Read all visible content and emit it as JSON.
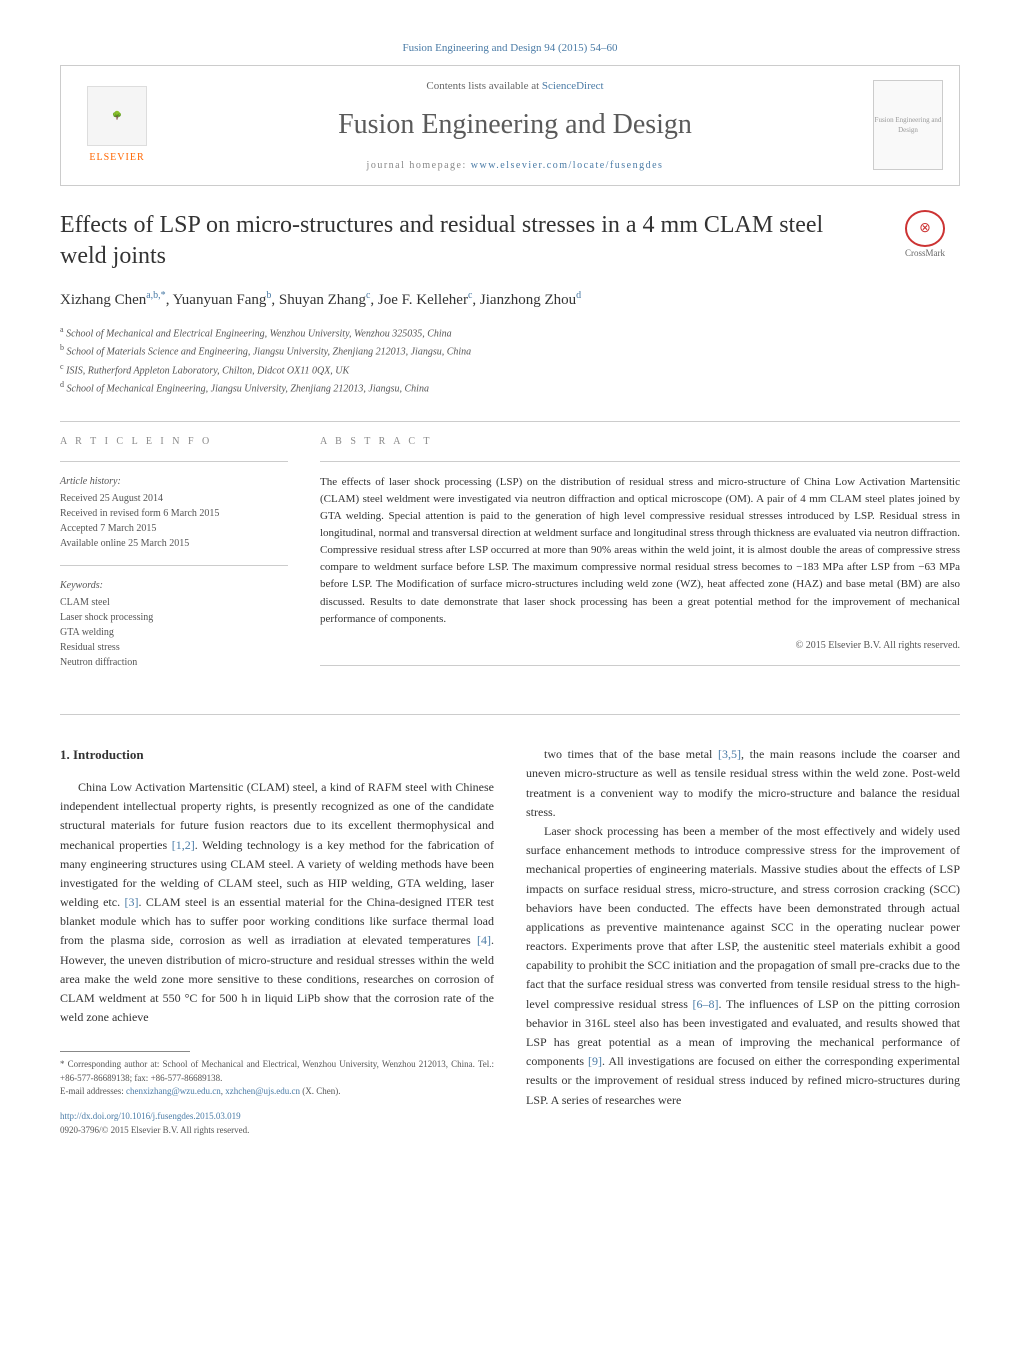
{
  "header": {
    "citation": "Fusion Engineering and Design 94 (2015) 54–60",
    "contents_prefix": "Contents lists available at ",
    "contents_link": "ScienceDirect",
    "journal_name": "Fusion Engineering and Design",
    "homepage_label": "journal homepage: ",
    "homepage_url": "www.elsevier.com/locate/fusengdes",
    "elsevier_label": "ELSEVIER",
    "cover_label": "Fusion Engineering and Design",
    "crossmark_label": "CrossMark"
  },
  "article": {
    "title": "Effects of LSP on micro-structures and residual stresses in a 4 mm CLAM steel weld joints",
    "authors_html": "Xizhang Chen",
    "authors": [
      {
        "name": "Xizhang Chen",
        "affil": "a,b,*"
      },
      {
        "name": "Yuanyuan Fang",
        "affil": "b"
      },
      {
        "name": "Shuyan Zhang",
        "affil": "c"
      },
      {
        "name": "Joe F. Kelleher",
        "affil": "c"
      },
      {
        "name": "Jianzhong Zhou",
        "affil": "d"
      }
    ],
    "affiliations": [
      {
        "sup": "a",
        "text": "School of Mechanical and Electrical Engineering, Wenzhou University, Wenzhou 325035, China"
      },
      {
        "sup": "b",
        "text": "School of Materials Science and Engineering, Jiangsu University, Zhenjiang 212013, Jiangsu, China"
      },
      {
        "sup": "c",
        "text": "ISIS, Rutherford Appleton Laboratory, Chilton, Didcot OX11 0QX, UK"
      },
      {
        "sup": "d",
        "text": "School of Mechanical Engineering, Jiangsu University, Zhenjiang 212013, Jiangsu, China"
      }
    ]
  },
  "info": {
    "label": "A R T I C L E   I N F O",
    "history_head": "Article history:",
    "received": "Received 25 August 2014",
    "revised": "Received in revised form 6 March 2015",
    "accepted": "Accepted 7 March 2015",
    "online": "Available online 25 March 2015",
    "keywords_head": "Keywords:",
    "keywords": [
      "CLAM steel",
      "Laser shock processing",
      "GTA welding",
      "Residual stress",
      "Neutron diffraction"
    ]
  },
  "abstract": {
    "label": "A B S T R A C T",
    "text": "The effects of laser shock processing (LSP) on the distribution of residual stress and micro-structure of China Low Activation Martensitic (CLAM) steel weldment were investigated via neutron diffraction and optical microscope (OM). A pair of 4 mm CLAM steel plates joined by GTA welding. Special attention is paid to the generation of high level compressive residual stresses introduced by LSP. Residual stress in longitudinal, normal and transversal direction at weldment surface and longitudinal stress through thickness are evaluated via neutron diffraction. Compressive residual stress after LSP occurred at more than 90% areas within the weld joint, it is almost double the areas of compressive stress compare to weldment surface before LSP. The maximum compressive normal residual stress becomes to −183 MPa after LSP from −63 MPa before LSP. The Modification of surface micro-structures including weld zone (WZ), heat affected zone (HAZ) and base metal (BM) are also discussed. Results to date demonstrate that laser shock processing has been a great potential method for the improvement of mechanical performance of components.",
    "copyright": "© 2015 Elsevier B.V. All rights reserved."
  },
  "body": {
    "section_number": "1.",
    "section_title": "Introduction",
    "col1_p1": "China Low Activation Martensitic (CLAM) steel, a kind of RAFM steel with Chinese independent intellectual property rights, is presently recognized as one of the candidate structural materials for future fusion reactors due to its excellent thermophysical and mechanical properties [1,2]. Welding technology is a key method for the fabrication of many engineering structures using CLAM steel. A variety of welding methods have been investigated for the welding of CLAM steel, such as HIP welding, GTA welding, laser welding etc. [3]. CLAM steel is an essential material for the China-designed ITER test blanket module which has to suffer poor working conditions like surface thermal load from the plasma side, corrosion as well as irradiation at elevated temperatures [4]. However, the uneven distribution of micro-structure and residual stresses within the weld area make the weld zone more sensitive to these conditions, researches on corrosion of CLAM weldment at 550 °C for 500 h in liquid LiPb show that the corrosion rate of the weld zone achieve",
    "col2_p1": "two times that of the base metal [3,5], the main reasons include the coarser and uneven micro-structure as well as tensile residual stress within the weld zone. Post-weld treatment is a convenient way to modify the micro-structure and balance the residual stress.",
    "col2_p2": "Laser shock processing has been a member of the most effectively and widely used surface enhancement methods to introduce compressive stress for the improvement of mechanical properties of engineering materials. Massive studies about the effects of LSP impacts on surface residual stress, micro-structure, and stress corrosion cracking (SCC) behaviors have been conducted. The effects have been demonstrated through actual applications as preventive maintenance against SCC in the operating nuclear power reactors. Experiments prove that after LSP, the austenitic steel materials exhibit a good capability to prohibit the SCC initiation and the propagation of small pre-cracks due to the fact that the surface residual stress was converted from tensile residual stress to the high-level compressive residual stress [6–8]. The influences of LSP on the pitting corrosion behavior in 316L steel also has been investigated and evaluated, and results showed that LSP has great potential as a mean of improving the mechanical performance of components [9]. All investigations are focused on either the corresponding experimental results or the improvement of residual stress induced by refined micro-structures during LSP. A series of researches were",
    "refs": {
      "r12": "[1,2]",
      "r3": "[3]",
      "r4": "[4]",
      "r35": "[3,5]",
      "r68": "[6–8]",
      "r9": "[9]"
    }
  },
  "footnotes": {
    "corresponding": "* Corresponding author at: School of Mechanical and Electrical, Wenzhou University, Wenzhou 212013, China. Tel.: +86-577-86689138; fax: +86-577-86689138.",
    "email_label": "E-mail addresses: ",
    "email1": "chenxizhang@wzu.edu.cn",
    "email2": "xzhchen@ujs.edu.cn",
    "email_suffix": " (X. Chen).",
    "doi": "http://dx.doi.org/10.1016/j.fusengdes.2015.03.019",
    "issn": "0920-3796/© 2015 Elsevier B.V. All rights reserved."
  },
  "styling": {
    "link_color": "#4a7ba6",
    "text_color": "#333333",
    "muted_color": "#888888",
    "elsevier_orange": "#ff6600",
    "crossmark_red": "#cc3333",
    "border_color": "#cccccc",
    "background": "#ffffff",
    "title_fontsize": 24,
    "journal_fontsize": 28,
    "body_fontsize": 12,
    "abstract_fontsize": 11,
    "info_fontsize": 10,
    "footnote_fontsize": 9
  }
}
